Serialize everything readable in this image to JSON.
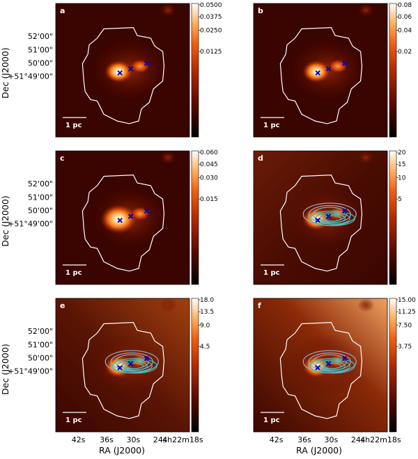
{
  "figure": {
    "ylabel": "Dec (J2000)",
    "xlabel": "RA (J2000)",
    "dec_ticks": [
      "52'00\"",
      "51'00\"",
      "50'00\"",
      "+51°49'00\""
    ],
    "ra_ticks": [
      "42s",
      "36s",
      "30s",
      "24s",
      "4h22m18s"
    ],
    "scalebar_label": "1 pc",
    "colors": {
      "background_dark": "#3a0400",
      "mask_contour": "#ffffff",
      "source_marker": "#0000cc",
      "contour_gray": "#9ca5b5",
      "contour_teal": "#33bfbf"
    },
    "colormap": "gist_heat",
    "panels": [
      {
        "letter": "a",
        "colorbar": [
          "0.0500",
          "0.0375",
          "0.0250",
          "0.0125"
        ],
        "contours": false
      },
      {
        "letter": "b",
        "colorbar": [
          "0.08",
          "0.06",
          "0.04",
          "0.02"
        ],
        "contours": false
      },
      {
        "letter": "c",
        "colorbar": [
          "0.060",
          "0.045",
          "0.030",
          "0.015"
        ],
        "contours": false
      },
      {
        "letter": "d",
        "colorbar": [
          "20",
          "15",
          "10",
          "5"
        ],
        "contours": true
      },
      {
        "letter": "e",
        "colorbar": [
          "18.0",
          "13.5",
          "9.0",
          "4.5"
        ],
        "contours": true
      },
      {
        "letter": "f",
        "colorbar": [
          "15.00",
          "11.25",
          "7.50",
          "3.75"
        ],
        "contours": true
      }
    ]
  }
}
